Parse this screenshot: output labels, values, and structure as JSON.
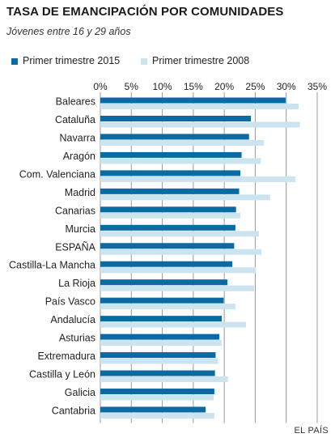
{
  "title": "TASA DE EMANCIPACIÓN POR COMUNIDADES",
  "subtitle": "Jóvenes entre 16 y 29 años",
  "source": "EL PAÍS",
  "colors": {
    "series_2015": "#0a6aa1",
    "series_2008": "#cbe4ef",
    "grid": "#999999",
    "text": "#222222"
  },
  "chart_data": {
    "type": "bar",
    "orientation": "horizontal",
    "title": "TASA DE EMANCIPACIÓN POR COMUNIDADES",
    "subtitle": "Jóvenes entre 16 y 29 años",
    "xlim": [
      0,
      35
    ],
    "ticks": [
      0,
      5,
      10,
      15,
      20,
      25,
      30,
      35
    ],
    "tick_labels": [
      "0%",
      "5%",
      "10%",
      "15%",
      "20%",
      "25%",
      "30%",
      "35%"
    ],
    "grid": true,
    "legend_position": "top",
    "categories": [
      "Baleares",
      "Cataluña",
      "Navarra",
      "Aragón",
      "Com. Valenciana",
      "Madrid",
      "Canarias",
      "Murcia",
      "ESPAÑA",
      "Castilla-La Mancha",
      "La Rioja",
      "País Vasco",
      "Andalucía",
      "Asturias",
      "Extremadura",
      "Castilla y León",
      "Galicia",
      "Cantabria"
    ],
    "series": [
      {
        "name": "Primer trimestre 2015",
        "values": [
          29.9,
          24.3,
          24.0,
          22.8,
          22.6,
          22.4,
          21.9,
          21.8,
          21.6,
          21.3,
          20.5,
          19.9,
          19.6,
          19.2,
          18.6,
          18.5,
          18.4,
          17.0
        ]
      },
      {
        "name": "Primer trimestre 2008",
        "values": [
          32.0,
          32.2,
          26.4,
          25.9,
          31.5,
          27.4,
          22.6,
          25.6,
          26.0,
          25.1,
          24.8,
          21.8,
          23.5,
          19.6,
          19.0,
          20.6,
          18.3,
          18.4
        ]
      }
    ]
  }
}
